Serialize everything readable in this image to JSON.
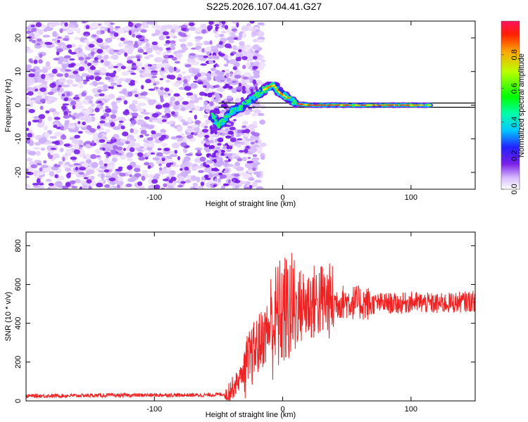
{
  "figure": {
    "title": "S225.2026.107.04.41.G27"
  },
  "chart_data": [
    {
      "type": "heatmap",
      "title": "",
      "xlabel": "Height of straight line (km)",
      "ylabel": "Frequency (Hz)",
      "xlim": [
        -200,
        150
      ],
      "ylim": [
        -25,
        25
      ],
      "xticks": [
        -100,
        0,
        100
      ],
      "yticks": [
        -20,
        -10,
        0,
        10,
        20
      ],
      "ridge": {
        "x": [
          -55,
          -50,
          -45,
          -40,
          -35,
          -30,
          -25,
          -20,
          -15,
          -10,
          -7,
          -3,
          0,
          5,
          10,
          20,
          30,
          40,
          50,
          60,
          70,
          80,
          90,
          100,
          110,
          115
        ],
        "y": [
          -3,
          -6,
          -4,
          -2,
          -1,
          0,
          1.5,
          3,
          4.5,
          5.5,
          6,
          4,
          3,
          2,
          0.5,
          0,
          0,
          0,
          0,
          0,
          0,
          0,
          0,
          0,
          0,
          0
        ]
      },
      "reference_line": {
        "x": [
          -50,
          150
        ],
        "y": [
          0,
          0
        ]
      },
      "colorbar": {
        "label": "Normalized spectral amplitude",
        "ticks": [
          "0.0",
          "0.2",
          "0.4",
          "0.6",
          "0.8"
        ],
        "range": [
          0,
          1
        ]
      }
    },
    {
      "type": "line",
      "title": "",
      "xlabel": "Height of straight line (km)",
      "ylabel": "SNR (10 * v/v)",
      "xlim": [
        -200,
        150
      ],
      "ylim": [
        0,
        870
      ],
      "xticks": [
        -100,
        0,
        100
      ],
      "yticks": [
        0,
        200,
        400,
        600,
        800
      ],
      "series": [
        {
          "name": "SNR",
          "color": "#ee2222",
          "x": [
            -200,
            -150,
            -100,
            -60,
            -45,
            -40,
            -35,
            -30,
            -25,
            -20,
            -15,
            -10,
            -5,
            0,
            5,
            10,
            20,
            30,
            40,
            50,
            60,
            70,
            80,
            90,
            100,
            110,
            120,
            130,
            140,
            150
          ],
          "y": [
            25,
            28,
            30,
            30,
            35,
            60,
            100,
            160,
            220,
            280,
            330,
            380,
            420,
            460,
            470,
            480,
            500,
            520,
            510,
            510,
            505,
            500,
            505,
            500,
            510,
            505,
            500,
            505,
            510,
            515
          ]
        }
      ]
    }
  ],
  "colors": {
    "line": "#ee2222",
    "scatter": "#7a1fe8",
    "ridge_core": "#dd3030"
  }
}
